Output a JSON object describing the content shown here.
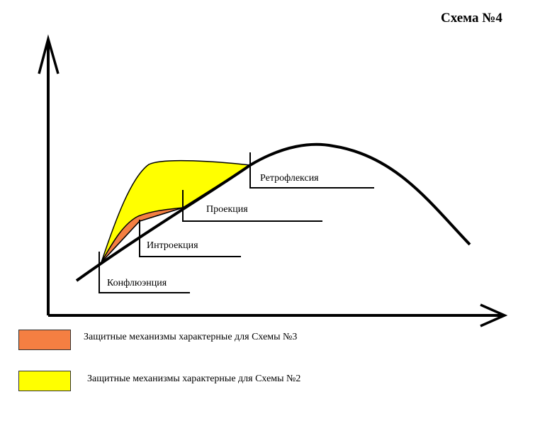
{
  "title": "Схема №4",
  "colors": {
    "orange": "#F47F42",
    "yellow": "#FFFF00",
    "line": "#000000"
  },
  "stages": [
    {
      "label": "Конфлюэнция"
    },
    {
      "label": "Интроекция"
    },
    {
      "label": "Проекция"
    },
    {
      "label": "Ретрофлексия"
    }
  ],
  "legend": [
    {
      "color_name": "orange",
      "label": "Защитные механизмы характерные для Схемы №3"
    },
    {
      "color_name": "yellow",
      "label": "Защитные механизмы характерные для Схемы №2"
    }
  ]
}
